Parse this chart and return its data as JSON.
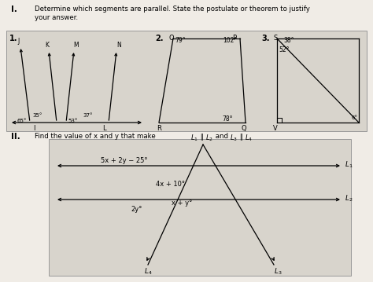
{
  "bg_color": "#f0ece6",
  "panel_bg": "#d8d4cc",
  "fig1_angles": [
    "35°",
    "65°",
    "37°",
    "53°"
  ],
  "fig2_angles": [
    "79°",
    "102°",
    "78°"
  ],
  "fig3_angles": [
    "38°",
    "52°",
    "6°"
  ]
}
